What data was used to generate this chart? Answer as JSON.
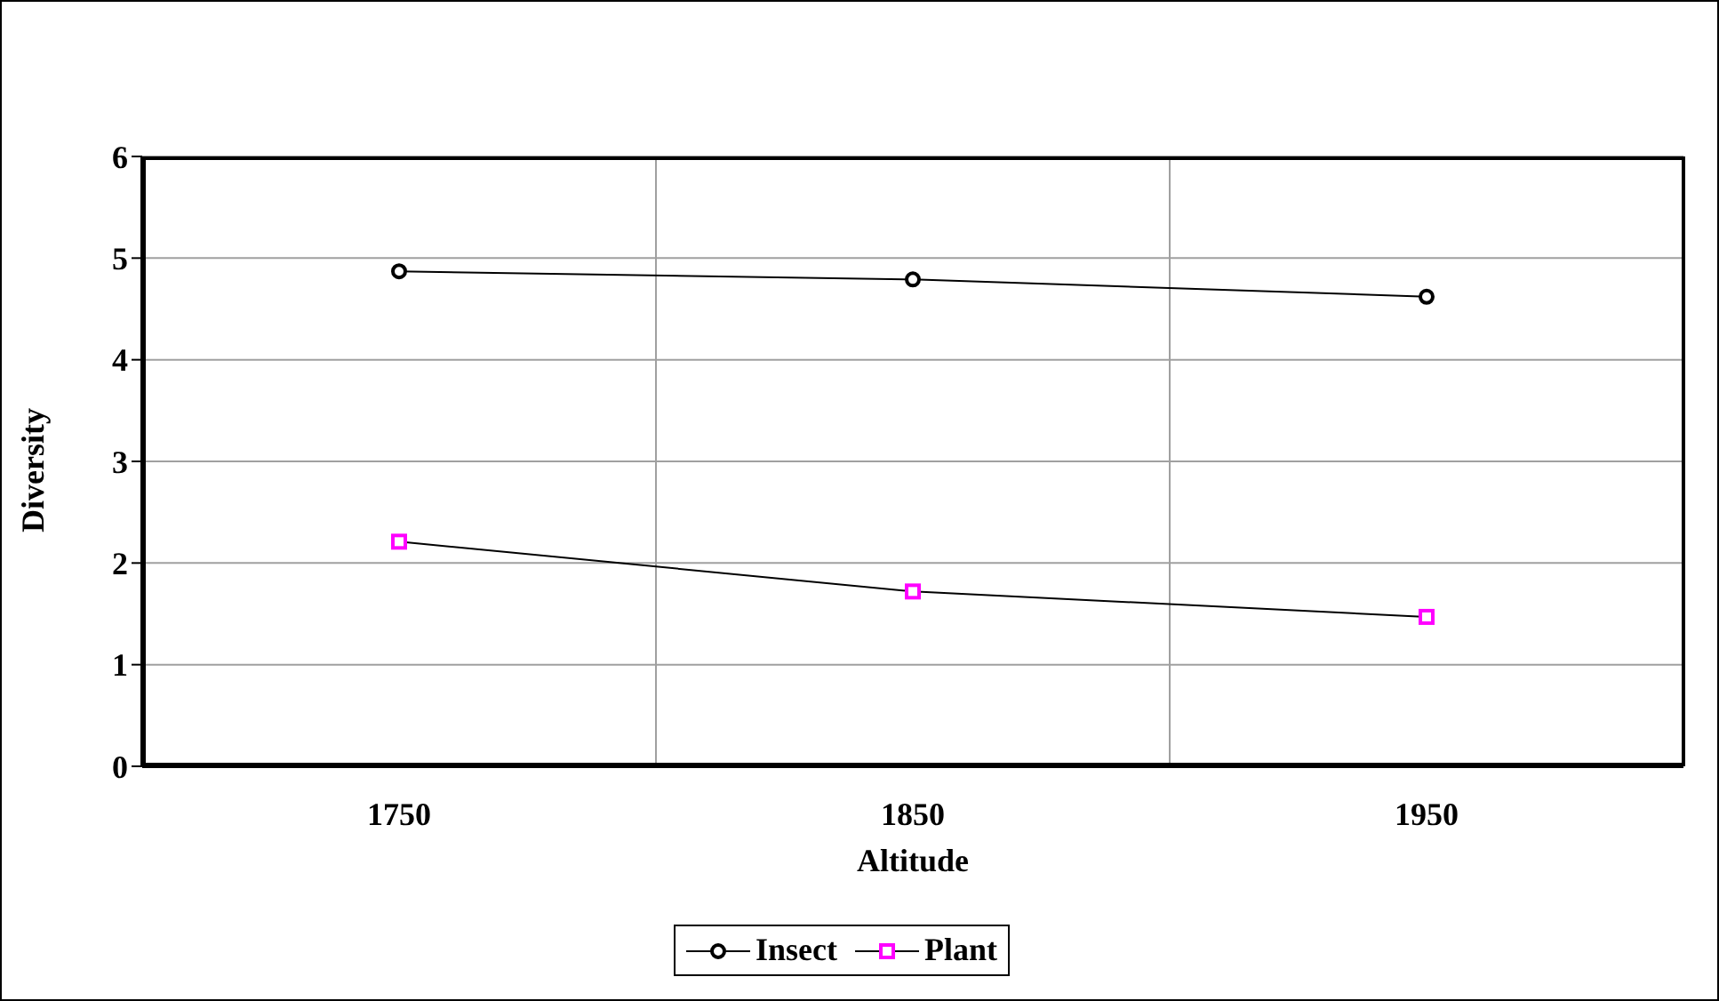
{
  "chart_data": {
    "type": "line",
    "xlabel": "Altitude",
    "ylabel": "Diversity",
    "categories": [
      "1750",
      "1850",
      "1950"
    ],
    "series": [
      {
        "name": "Insect",
        "color": "#000000",
        "marker": "circle",
        "values": [
          4.87,
          4.79,
          4.62
        ]
      },
      {
        "name": "Plant",
        "color": "#ff00ff",
        "marker": "square",
        "values": [
          2.21,
          1.72,
          1.47
        ]
      }
    ],
    "ylim": [
      0,
      6
    ],
    "yticks": [
      0,
      1,
      2,
      3,
      4,
      5,
      6
    ],
    "grid": true,
    "legend": "bottom"
  }
}
